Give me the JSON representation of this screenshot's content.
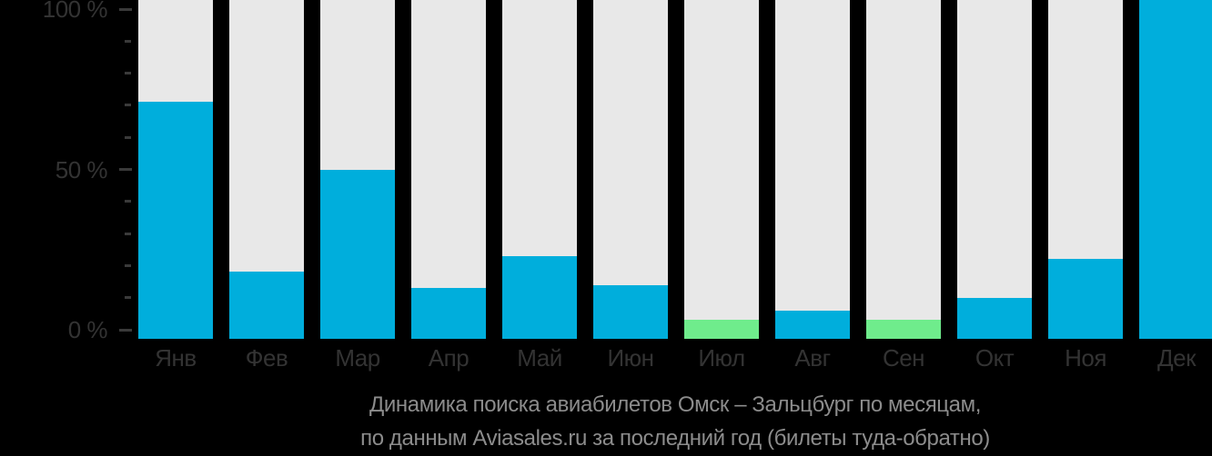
{
  "chart_data": {
    "type": "bar",
    "title": "Динамика поиска авиабилетов Омск – Зальцбург по месяцам,",
    "subtitle": "по данным Aviasales.ru за последний год (билеты туда-обратно)",
    "categories": [
      "Янв",
      "Фев",
      "Мар",
      "Апр",
      "Май",
      "Июн",
      "Июл",
      "Авг",
      "Сен",
      "Окт",
      "Ноя",
      "Дек"
    ],
    "values": [
      71,
      18,
      50,
      13,
      23,
      14,
      3,
      6,
      3,
      10,
      22,
      100
    ],
    "unit": "%",
    "ylim": [
      0,
      100
    ],
    "y_major_ticks": [
      0,
      50,
      100
    ],
    "y_tick_labels": [
      "0 %",
      "50 %",
      "100 %"
    ],
    "y_minor_tick_step": 10,
    "highlight_indices": [
      6,
      8
    ],
    "legend": "none",
    "grid": false,
    "colors": {
      "bar_default": "#00AEDC",
      "bar_highlight": "#6FEC8C",
      "bar_background": "#E8E8E8",
      "axis_text": "#333333",
      "tick_mark": "#3A3A3A",
      "caption_text": "#8C8C8C",
      "background": "#000000"
    }
  }
}
